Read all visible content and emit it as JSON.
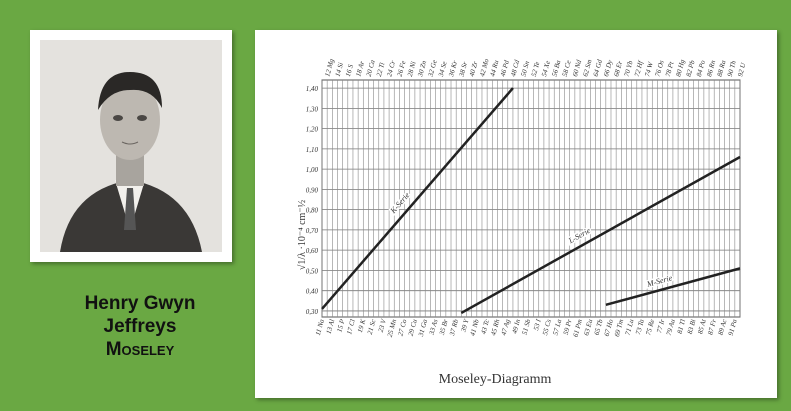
{
  "person": {
    "line1": "Henry Gwyn",
    "line2": "Jeffreys",
    "line3": "Moseley"
  },
  "chart_data": {
    "type": "line",
    "title": "Moseley-Diagramm",
    "y_label": "√1/λ ·10⁻⁴ cm⁻½",
    "xlim": [
      11,
      92
    ],
    "ylim": [
      0.27,
      1.44
    ],
    "yticks": [
      {
        "value": 0.3,
        "label": "0,30"
      },
      {
        "value": 0.4,
        "label": "0,40"
      },
      {
        "value": 0.5,
        "label": "0,50"
      },
      {
        "value": 0.6,
        "label": "0,60"
      },
      {
        "value": 0.7,
        "label": "0,70"
      },
      {
        "value": 0.8,
        "label": "0,80"
      },
      {
        "value": 0.9,
        "label": "0,90"
      },
      {
        "value": 1.0,
        "label": "1,00"
      },
      {
        "value": 1.1,
        "label": "1,10"
      },
      {
        "value": 1.2,
        "label": "1,20"
      },
      {
        "value": 1.3,
        "label": "1,30"
      },
      {
        "value": 1.4,
        "label": "1,40"
      }
    ],
    "top_ticks": [
      {
        "value": 12,
        "label": "12 Mg"
      },
      {
        "value": 14,
        "label": "14 Si"
      },
      {
        "value": 16,
        "label": "16 S"
      },
      {
        "value": 18,
        "label": "18 Ar"
      },
      {
        "value": 20,
        "label": "20 Ca"
      },
      {
        "value": 22,
        "label": "22 Ti"
      },
      {
        "value": 24,
        "label": "24 Cr"
      },
      {
        "value": 26,
        "label": "26 Fe"
      },
      {
        "value": 28,
        "label": "28 Ni"
      },
      {
        "value": 30,
        "label": "30 Zn"
      },
      {
        "value": 32,
        "label": "32 Ge"
      },
      {
        "value": 34,
        "label": "34 Se"
      },
      {
        "value": 36,
        "label": "36 Kr"
      },
      {
        "value": 38,
        "label": "38 Sr"
      },
      {
        "value": 40,
        "label": "40 Zr"
      },
      {
        "value": 42,
        "label": "42 Mo"
      },
      {
        "value": 44,
        "label": "44 Ru"
      },
      {
        "value": 46,
        "label": "46 Pd"
      },
      {
        "value": 48,
        "label": "48 Cd"
      },
      {
        "value": 50,
        "label": "50 Sn"
      },
      {
        "value": 52,
        "label": "52 Te"
      },
      {
        "value": 54,
        "label": "54 Xe"
      },
      {
        "value": 56,
        "label": "56 Ba"
      },
      {
        "value": 58,
        "label": "58 Ce"
      },
      {
        "value": 60,
        "label": "60 Nd"
      },
      {
        "value": 62,
        "label": "62 Sm"
      },
      {
        "value": 64,
        "label": "64 Gd"
      },
      {
        "value": 66,
        "label": "66 Dy"
      },
      {
        "value": 68,
        "label": "68 Er"
      },
      {
        "value": 70,
        "label": "70 Yb"
      },
      {
        "value": 72,
        "label": "72 Hf"
      },
      {
        "value": 74,
        "label": "74 W"
      },
      {
        "value": 76,
        "label": "76 Os"
      },
      {
        "value": 78,
        "label": "78 Pt"
      },
      {
        "value": 80,
        "label": "80 Hg"
      },
      {
        "value": 82,
        "label": "82 Pb"
      },
      {
        "value": 84,
        "label": "84 Po"
      },
      {
        "value": 86,
        "label": "86 Rn"
      },
      {
        "value": 88,
        "label": "88 Ra"
      },
      {
        "value": 90,
        "label": "90 Th"
      },
      {
        "value": 92,
        "label": "92 U"
      }
    ],
    "bottom_ticks": [
      {
        "value": 11,
        "label": "11 Na"
      },
      {
        "value": 13,
        "label": "13 Al"
      },
      {
        "value": 15,
        "label": "15 P"
      },
      {
        "value": 17,
        "label": "17 Cl"
      },
      {
        "value": 19,
        "label": "19 K"
      },
      {
        "value": 21,
        "label": "21 Sc"
      },
      {
        "value": 23,
        "label": "23 V"
      },
      {
        "value": 25,
        "label": "25 Mn"
      },
      {
        "value": 27,
        "label": "27 Co"
      },
      {
        "value": 29,
        "label": "29 Cu"
      },
      {
        "value": 31,
        "label": "31 Ga"
      },
      {
        "value": 33,
        "label": "33 As"
      },
      {
        "value": 35,
        "label": "35 Br"
      },
      {
        "value": 37,
        "label": "37 Rb"
      },
      {
        "value": 39,
        "label": "39 Y"
      },
      {
        "value": 41,
        "label": "41 Nb"
      },
      {
        "value": 43,
        "label": "43 Tc"
      },
      {
        "value": 45,
        "label": "45 Rh"
      },
      {
        "value": 47,
        "label": "47 Ag"
      },
      {
        "value": 49,
        "label": "49 In"
      },
      {
        "value": 51,
        "label": "51 Sb"
      },
      {
        "value": 53,
        "label": "53 I"
      },
      {
        "value": 55,
        "label": "55 Cs"
      },
      {
        "value": 57,
        "label": "57 La"
      },
      {
        "value": 59,
        "label": "59 Pr"
      },
      {
        "value": 61,
        "label": "61 Pm"
      },
      {
        "value": 63,
        "label": "63 Eu"
      },
      {
        "value": 65,
        "label": "65 Tb"
      },
      {
        "value": 67,
        "label": "67 Ho"
      },
      {
        "value": 69,
        "label": "69 Tm"
      },
      {
        "value": 71,
        "label": "71 Lu"
      },
      {
        "value": 73,
        "label": "73 Ta"
      },
      {
        "value": 75,
        "label": "75 Re"
      },
      {
        "value": 77,
        "label": "77 Ir"
      },
      {
        "value": 79,
        "label": "79 Au"
      },
      {
        "value": 81,
        "label": "81 Tl"
      },
      {
        "value": 83,
        "label": "83 Bi"
      },
      {
        "value": 85,
        "label": "85 At"
      },
      {
        "value": 87,
        "label": "87 Fr"
      },
      {
        "value": 89,
        "label": "89 Ac"
      },
      {
        "value": 91,
        "label": "91 Pa"
      }
    ],
    "grid": true,
    "series": [
      {
        "name": "K-Serie",
        "color": "#222222",
        "x": [
          11,
          48
        ],
        "values": [
          0.31,
          1.4
        ]
      },
      {
        "name": "L-Serie",
        "color": "#222222",
        "x": [
          38,
          92
        ],
        "values": [
          0.29,
          1.06
        ]
      },
      {
        "name": "M-Serie",
        "color": "#222222",
        "x": [
          66,
          92
        ],
        "values": [
          0.33,
          0.51
        ]
      }
    ]
  }
}
